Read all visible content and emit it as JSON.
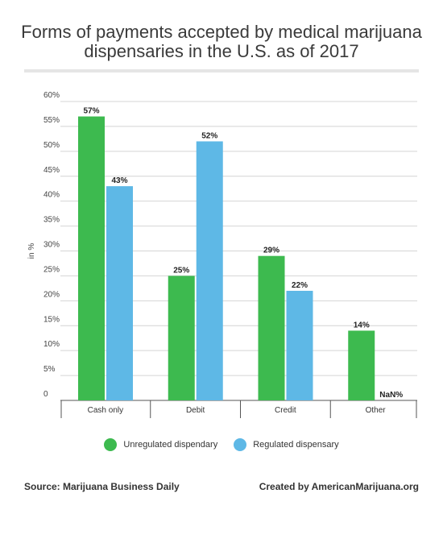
{
  "title_line1": "Forms of payments accepted by medical marijuana",
  "title_line2": "dispensaries in the U.S. as of 2017",
  "source": "Source: Marijuana Business Daily",
  "credit": "Created by AmericanMarijuana.org",
  "chart_data": {
    "type": "bar",
    "title": "Forms of payments accepted by medical marijuana dispensaries in the U.S. as of 2017",
    "xlabel": "",
    "ylabel": "in %",
    "ylim": [
      0,
      60
    ],
    "yticks": [
      0,
      5,
      10,
      15,
      20,
      25,
      30,
      35,
      40,
      45,
      50,
      55,
      60
    ],
    "ytick_labels": [
      "0",
      "5%",
      "10%",
      "15%",
      "20%",
      "25%",
      "30%",
      "35%",
      "40%",
      "45%",
      "50%",
      "55%",
      "60%"
    ],
    "grid": true,
    "legend": "bottom",
    "categories": [
      "Cash only",
      "Debit",
      "Credit",
      "Other"
    ],
    "series": [
      {
        "name": "Unregulated dispendary",
        "color": "#3dba4f",
        "values": [
          57,
          25,
          29,
          14
        ],
        "labels": [
          "57%",
          "25%",
          "29%",
          "14%"
        ]
      },
      {
        "name": "Regulated dispensary",
        "color": "#5eb8e6",
        "values": [
          43,
          52,
          22,
          null
        ],
        "labels": [
          "43%",
          "52%",
          "22%",
          "NaN%"
        ]
      }
    ]
  }
}
